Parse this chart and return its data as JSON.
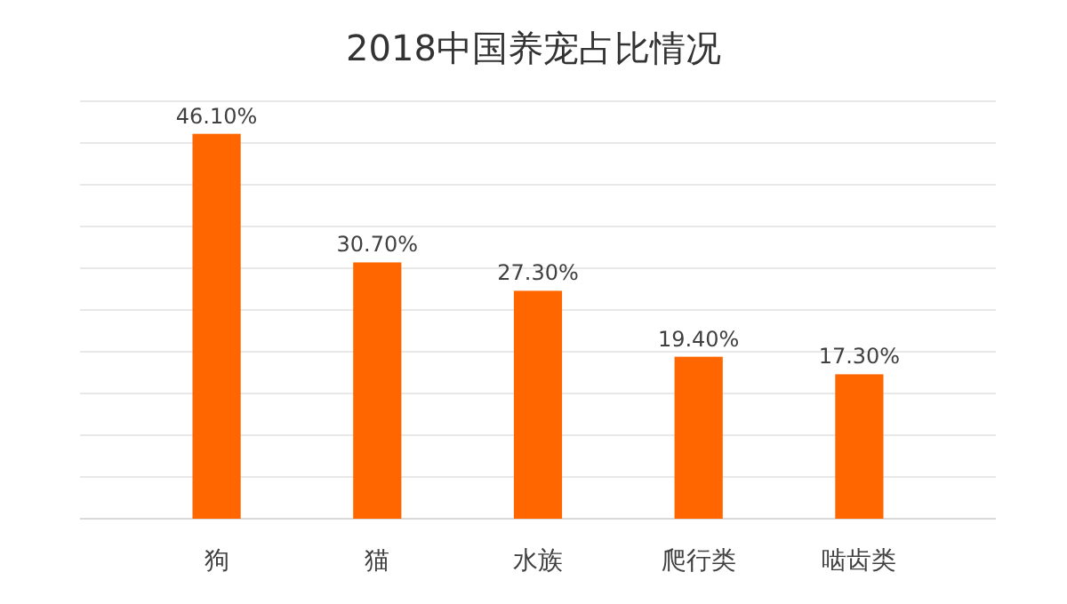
{
  "chart_data": {
    "type": "bar",
    "title": "2018中国养宠占比情况",
    "categories": [
      "狗",
      "猫",
      "水族",
      "爬行类",
      "啮齿类"
    ],
    "values": [
      46.1,
      30.7,
      27.3,
      19.4,
      17.3
    ],
    "value_labels": [
      "46.10%",
      "30.70%",
      "27.30%",
      "19.40%",
      "17.30%"
    ],
    "color": "#ff6600",
    "ylim": [
      0,
      50
    ],
    "yticks": [
      {
        "value": 0,
        "label": null
      },
      {
        "value": 5,
        "label": null
      },
      {
        "value": 10,
        "label": null
      },
      {
        "value": 15,
        "label": null
      },
      {
        "value": 20,
        "label": null
      },
      {
        "value": 25,
        "label": null
      },
      {
        "value": 30,
        "label": null
      },
      {
        "value": 35,
        "label": null
      },
      {
        "value": 40,
        "label": null
      },
      {
        "value": 45,
        "label": null
      },
      {
        "value": 50,
        "label": null
      }
    ],
    "grid": "y",
    "tick_labels": "x"
  }
}
